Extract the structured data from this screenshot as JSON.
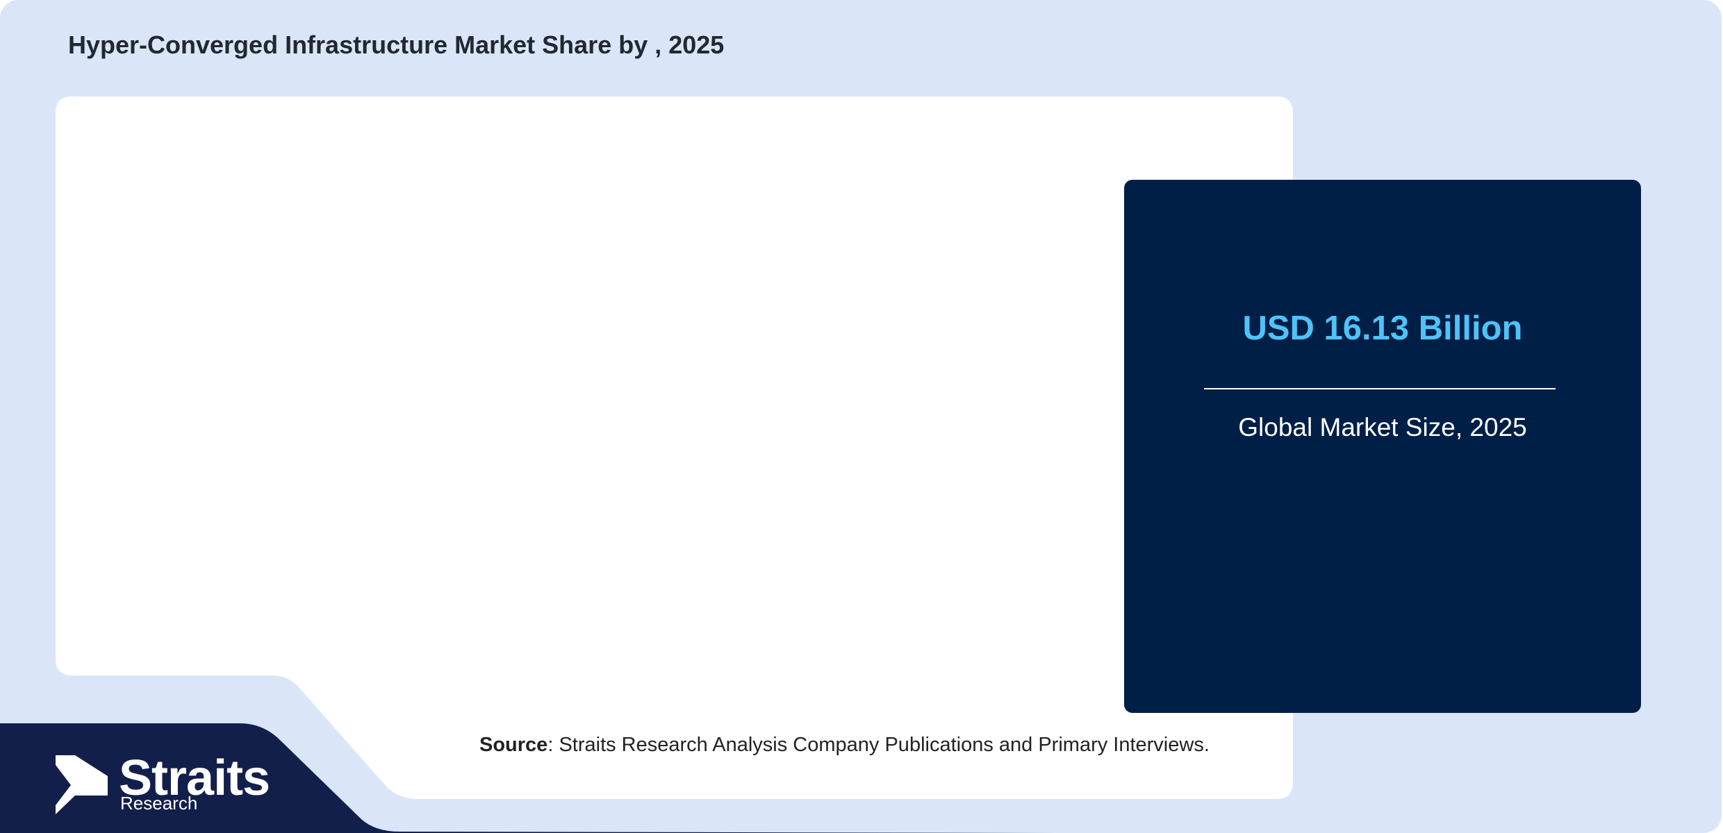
{
  "header": {
    "title": "Hyper-Converged Infrastructure Market Share by , 2025"
  },
  "market_card": {
    "value": "USD 16.13 Billion",
    "caption": "Global Market Size, 2025"
  },
  "source": {
    "label": "Source",
    "text": ": Straits Research Analysis Company Publications and Primary Interviews."
  },
  "logo": {
    "name": "Straits",
    "subname": "Research"
  }
}
